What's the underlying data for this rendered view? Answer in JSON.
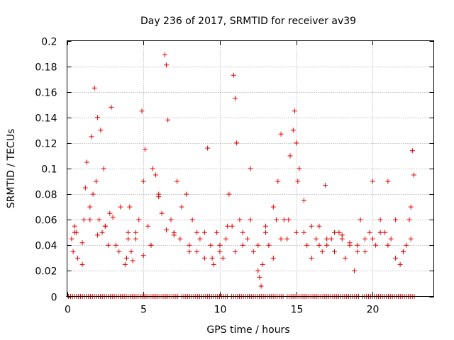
{
  "chart_data": {
    "type": "scatter",
    "title": "Day 236 of 2017, SRMTID for receiver av39",
    "xlabel": "GPS time / hours",
    "ylabel": "SRMTID / TECUs",
    "xlim": [
      0,
      24
    ],
    "ylim": [
      0,
      0.2
    ],
    "x_ticks": [
      0,
      5,
      10,
      15,
      20
    ],
    "y_ticks": [
      0,
      0.02,
      0.04,
      0.06,
      0.08,
      0.1,
      0.12,
      0.14,
      0.16,
      0.18,
      0.2
    ],
    "x_tick_labels": [
      "0",
      "5",
      "10",
      "15",
      "20"
    ],
    "y_tick_labels": [
      "0",
      "0.02",
      "0.04",
      "0.06",
      "0.08",
      "0.1",
      "0.12",
      "0.14",
      "0.16",
      "0.18",
      "0.2"
    ],
    "grid": true,
    "marker": "plus",
    "color": "#e00000",
    "points_note": "approximate sample of the dense scatter read from the figure",
    "x": [
      0.3,
      0.4,
      0.5,
      0.6,
      0.7,
      1.0,
      1.1,
      1.2,
      1.3,
      1.5,
      1.6,
      1.7,
      1.8,
      1.9,
      2.0,
      2.1,
      2.2,
      2.3,
      2.4,
      2.5,
      2.7,
      2.8,
      2.9,
      3.2,
      3.4,
      3.8,
      3.9,
      4.0,
      4.1,
      4.2,
      4.3,
      4.5,
      4.7,
      4.9,
      5.0,
      5.1,
      5.3,
      5.5,
      5.6,
      5.8,
      6.0,
      6.2,
      6.4,
      6.5,
      6.6,
      6.8,
      7.0,
      7.2,
      7.4,
      7.8,
      8.0,
      8.2,
      8.5,
      8.7,
      9.0,
      9.2,
      9.4,
      9.6,
      9.8,
      10.0,
      10.2,
      10.4,
      10.6,
      10.8,
      10.9,
      11.0,
      11.1,
      11.3,
      11.5,
      11.8,
      12.0,
      12.2,
      12.5,
      12.6,
      12.7,
      12.8,
      13.0,
      13.2,
      13.5,
      13.7,
      13.8,
      14.0,
      14.2,
      14.4,
      14.6,
      14.8,
      14.9,
      15.0,
      15.1,
      15.2,
      15.5,
      15.7,
      16.0,
      16.3,
      16.5,
      16.7,
      16.9,
      17.0,
      17.3,
      17.5,
      17.8,
      18.0,
      18.2,
      18.5,
      18.8,
      19.0,
      19.2,
      19.5,
      19.8,
      20.0,
      20.2,
      20.5,
      20.8,
      21.0,
      21.2,
      21.5,
      21.8,
      22.0,
      22.2,
      22.4,
      22.5,
      22.6,
      22.7,
      0.5,
      1.0,
      1.5,
      2.0,
      2.5,
      3.0,
      3.5,
      4.0,
      4.5,
      5.0,
      5.5,
      6.0,
      6.5,
      7.0,
      7.5,
      8.0,
      8.5,
      9.0,
      9.5,
      10.0,
      10.5,
      11.0,
      11.5,
      12.0,
      12.5,
      13.0,
      13.5,
      14.0,
      14.5,
      15.0,
      15.5,
      16.0,
      16.5,
      17.0,
      17.5,
      18.0,
      18.5,
      19.0,
      19.5,
      20.0,
      20.5,
      21.0,
      21.5,
      22.0,
      22.5
    ],
    "y": [
      0.045,
      0.035,
      0.055,
      0.05,
      0.03,
      0.042,
      0.06,
      0.085,
      0.105,
      0.07,
      0.125,
      0.08,
      0.163,
      0.09,
      0.14,
      0.06,
      0.13,
      0.05,
      0.1,
      0.055,
      0.04,
      0.065,
      0.148,
      0.04,
      0.035,
      0.025,
      0.03,
      0.045,
      0.07,
      0.035,
      0.028,
      0.05,
      0.06,
      0.145,
      0.09,
      0.115,
      0.055,
      0.04,
      0.1,
      0.095,
      0.08,
      0.065,
      0.189,
      0.181,
      0.138,
      0.06,
      0.05,
      0.09,
      0.045,
      0.08,
      0.04,
      0.06,
      0.035,
      0.045,
      0.03,
      0.116,
      0.04,
      0.025,
      0.05,
      0.035,
      0.03,
      0.045,
      0.08,
      0.055,
      0.173,
      0.155,
      0.12,
      0.06,
      0.04,
      0.045,
      0.1,
      0.035,
      0.02,
      0.015,
      0.008,
      0.025,
      0.05,
      0.04,
      0.07,
      0.06,
      0.09,
      0.127,
      0.06,
      0.045,
      0.11,
      0.13,
      0.145,
      0.12,
      0.09,
      0.1,
      0.05,
      0.04,
      0.03,
      0.045,
      0.055,
      0.035,
      0.087,
      0.04,
      0.045,
      0.035,
      0.05,
      0.045,
      0.03,
      0.04,
      0.02,
      0.035,
      0.06,
      0.045,
      0.05,
      0.09,
      0.04,
      0.06,
      0.05,
      0.09,
      0.045,
      0.03,
      0.025,
      0.035,
      0.04,
      0.06,
      0.07,
      0.114,
      0.095,
      0.05,
      0.025,
      0.06,
      0.048,
      0.055,
      0.062,
      0.07,
      0.05,
      0.045,
      0.032,
      0.04,
      0.078,
      0.052,
      0.048,
      0.07,
      0.035,
      0.05,
      0.05,
      0.03,
      0.04,
      0.055,
      0.035,
      0.05,
      0.06,
      0.04,
      0.055,
      0.03,
      0.045,
      0.06,
      0.05,
      0.075,
      0.055,
      0.04,
      0.045,
      0.05,
      0.048,
      0.042,
      0.04,
      0.035,
      0.045,
      0.05,
      0.04,
      0.06,
      0.035,
      0.045
    ]
  }
}
